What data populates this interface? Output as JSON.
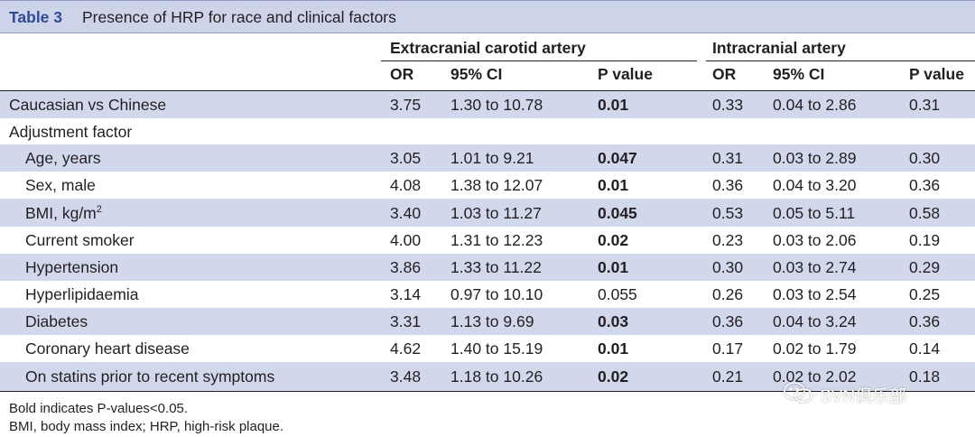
{
  "table": {
    "label": "Table 3",
    "caption": "Presence of HRP for race and clinical factors",
    "groups": [
      {
        "name": "Extracranial carotid artery"
      },
      {
        "name": "Intracranial artery"
      }
    ],
    "columns": [
      "OR",
      "95% CI",
      "P value",
      "OR",
      "95% CI",
      "P value"
    ],
    "rows": [
      {
        "label": "Caucasian vs Chinese",
        "indent": false,
        "cells": [
          "3.75",
          "1.30 to 10.78",
          "0.01",
          "0.33",
          "0.04 to 2.86",
          "0.31"
        ],
        "bold_p1": true
      },
      {
        "label": "Adjustment factor",
        "indent": false,
        "cells": [
          "",
          "",
          "",
          "",
          "",
          ""
        ],
        "bold_p1": false
      },
      {
        "label": "Age, years",
        "indent": true,
        "cells": [
          "3.05",
          "1.01 to 9.21",
          "0.047",
          "0.31",
          "0.03 to 2.89",
          "0.30"
        ],
        "bold_p1": true
      },
      {
        "label": "Sex, male",
        "indent": true,
        "cells": [
          "4.08",
          "1.38 to 12.07",
          "0.01",
          "0.36",
          "0.04 to 3.20",
          "0.36"
        ],
        "bold_p1": true
      },
      {
        "label": "BMI, kg/m",
        "sup": "2",
        "indent": true,
        "cells": [
          "3.40",
          "1.03 to 11.27",
          "0.045",
          "0.53",
          "0.05 to 5.11",
          "0.58"
        ],
        "bold_p1": true
      },
      {
        "label": "Current smoker",
        "indent": true,
        "cells": [
          "4.00",
          "1.31 to 12.23",
          "0.02",
          "0.23",
          "0.03 to 2.06",
          "0.19"
        ],
        "bold_p1": true
      },
      {
        "label": "Hypertension",
        "indent": true,
        "cells": [
          "3.86",
          "1.33 to 11.22",
          "0.01",
          "0.30",
          "0.03 to 2.74",
          "0.29"
        ],
        "bold_p1": true
      },
      {
        "label": "Hyperlipidaemia",
        "indent": true,
        "cells": [
          "3.14",
          "0.97 to 10.10",
          "0.055",
          "0.26",
          "0.03 to 2.54",
          "0.25"
        ],
        "bold_p1": false
      },
      {
        "label": "Diabetes",
        "indent": true,
        "cells": [
          "3.31",
          "1.13 to 9.69",
          "0.03",
          "0.36",
          "0.04 to 3.24",
          "0.36"
        ],
        "bold_p1": true
      },
      {
        "label": "Coronary heart disease",
        "indent": true,
        "cells": [
          "4.62",
          "1.40 to 15.19",
          "0.01",
          "0.17",
          "0.02 to 1.79",
          "0.14"
        ],
        "bold_p1": true
      },
      {
        "label": "On statins prior to recent symptoms",
        "indent": true,
        "cells": [
          "3.48",
          "1.18 to 10.26",
          "0.02",
          "0.21",
          "0.02 to 2.02",
          "0.18"
        ],
        "bold_p1": true
      }
    ],
    "footnotes": [
      "Bold indicates P-values<0.05.",
      "BMI, body mass index; HRP, high-risk plaque."
    ]
  },
  "watermark": {
    "text": "SVN俱乐部",
    "icon": "wechat-icon"
  },
  "colors": {
    "band": "#d1d8ec",
    "title_bg": "#cdd4ea",
    "label_blue": "#2e4a97"
  }
}
